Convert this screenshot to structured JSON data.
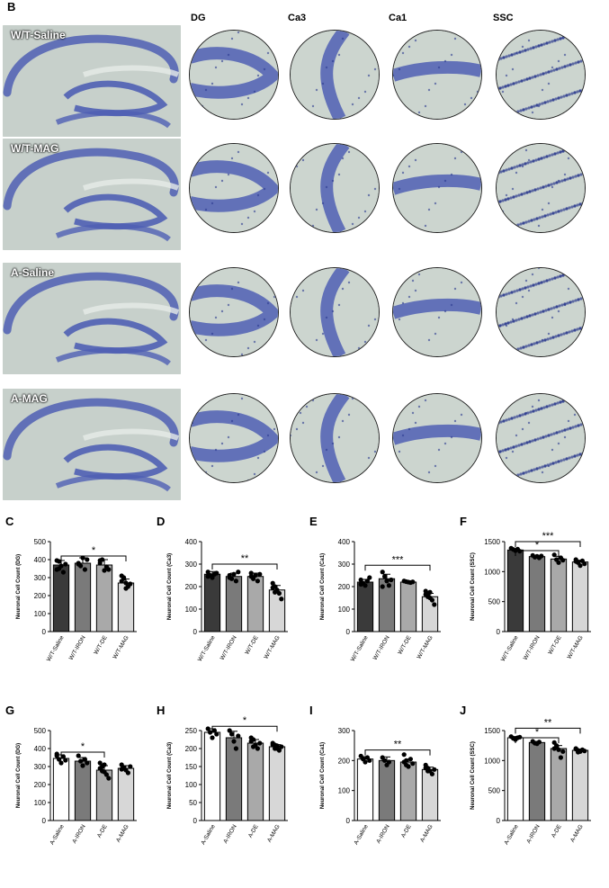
{
  "panel_b": {
    "letter": "B",
    "columns": [
      "DG",
      "Ca3",
      "Ca1",
      "SSC"
    ],
    "rows": [
      "W/T-Saline",
      "W/T-MAG",
      "A-Saline",
      "A-MAG"
    ]
  },
  "colors": {
    "stain": "#4f5fb4",
    "stain_dark": "#2c3a8f",
    "tissue": "#cbd3ce"
  },
  "chart_data": [
    {
      "letter": "C",
      "type": "bar",
      "ylabel": "Neuronal Cell Count (DG)",
      "ylim": [
        0,
        500
      ],
      "yticks": [
        0,
        100,
        200,
        300,
        400,
        500
      ],
      "categories": [
        "W/T-Saline",
        "W/T-IRON",
        "W/T-DE",
        "W/T-MAG"
      ],
      "values": [
        370,
        380,
        370,
        270
      ],
      "errors": [
        25,
        30,
        30,
        22
      ],
      "colors": [
        "#3a3a3a",
        "#7a7a7a",
        "#a9a9a9",
        "#d7d7d7"
      ],
      "sig": [
        {
          "from": 0,
          "to": 3,
          "label": "*",
          "y": 420
        }
      ],
      "points": [
        [
          395,
          350,
          365,
          330,
          375,
          345,
          390
        ],
        [
          375,
          365,
          410,
          345,
          400,
          380
        ],
        [
          395,
          400,
          340,
          360,
          345,
          380
        ],
        [
          310,
          295,
          270,
          250,
          265,
          280,
          300,
          240
        ]
      ]
    },
    {
      "letter": "D",
      "type": "bar",
      "ylabel": "Neuronal Cell Count (Ca3)",
      "ylim": [
        0,
        400
      ],
      "yticks": [
        0,
        100,
        200,
        300,
        400
      ],
      "categories": [
        "W/T-Saline",
        "W/T-IRON",
        "W/T-DE",
        "W/T-MAG"
      ],
      "values": [
        255,
        245,
        245,
        185
      ],
      "errors": [
        12,
        15,
        15,
        20
      ],
      "colors": [
        "#3a3a3a",
        "#7a7a7a",
        "#a9a9a9",
        "#d7d7d7"
      ],
      "sig": [
        {
          "from": 0,
          "to": 3,
          "label": "**",
          "y": 300
        }
      ],
      "points": [
        [
          265,
          250,
          240,
          255,
          260,
          245
        ],
        [
          250,
          235,
          255,
          225,
          265,
          240
        ],
        [
          260,
          235,
          250,
          225,
          255,
          245
        ],
        [
          215,
          200,
          180,
          170,
          145,
          195,
          175,
          185
        ]
      ]
    },
    {
      "letter": "E",
      "type": "bar",
      "ylabel": "Neuronal Cell Count (Ca1)",
      "ylim": [
        0,
        400
      ],
      "yticks": [
        0,
        100,
        200,
        300,
        400
      ],
      "categories": [
        "W/T-Saline",
        "W/T-IRON",
        "W/T-DE",
        "W/T-MAG"
      ],
      "values": [
        220,
        235,
        220,
        155
      ],
      "errors": [
        12,
        20,
        4,
        15
      ],
      "colors": [
        "#3a3a3a",
        "#7a7a7a",
        "#a9a9a9",
        "#d7d7d7"
      ],
      "sig": [
        {
          "from": 0,
          "to": 3,
          "label": "***",
          "y": 295
        }
      ],
      "points": [
        [
          230,
          215,
          205,
          225,
          240,
          210
        ],
        [
          265,
          245,
          225,
          205,
          230,
          200
        ],
        [
          225,
          222,
          220,
          218,
          221
        ],
        [
          180,
          170,
          150,
          140,
          120,
          165,
          155,
          175
        ]
      ]
    },
    {
      "letter": "F",
      "type": "bar",
      "ylabel": "Neuronal Cell Count (SSC)",
      "ylim": [
        0,
        1500
      ],
      "yticks": [
        0,
        500,
        1000,
        1500
      ],
      "categories": [
        "W/T-Saline",
        "W/T-IRON",
        "W/T-DE",
        "W/T-MAG"
      ],
      "values": [
        1360,
        1250,
        1210,
        1160
      ],
      "errors": [
        20,
        20,
        45,
        30
      ],
      "colors": [
        "#3a3a3a",
        "#7a7a7a",
        "#a9a9a9",
        "#d7d7d7"
      ],
      "sig": [
        {
          "from": 0,
          "to": 2,
          "label": "*",
          "y": 1350,
          "level": 1
        },
        {
          "from": 0,
          "to": 3,
          "label": "***",
          "y": 1500,
          "level": 2
        }
      ],
      "points": [
        [
          1390,
          1370,
          1350,
          1375,
          1340
        ],
        [
          1270,
          1240,
          1255,
          1230,
          1260
        ],
        [
          1280,
          1200,
          1150,
          1230,
          1190
        ],
        [
          1200,
          1150,
          1100,
          1180,
          1130,
          1170,
          1160
        ]
      ]
    },
    {
      "letter": "G",
      "type": "bar",
      "ylabel": "Neuronal Cell Count (DG)",
      "ylim": [
        0,
        500
      ],
      "yticks": [
        0,
        100,
        200,
        300,
        400,
        500
      ],
      "categories": [
        "A-Saline",
        "A-IRON",
        "A-DE",
        "A-MAG"
      ],
      "values": [
        345,
        330,
        280,
        290
      ],
      "errors": [
        20,
        20,
        25,
        15
      ],
      "colors": [
        "#ffffff",
        "#7a7a7a",
        "#a9a9a9",
        "#d7d7d7"
      ],
      "sig": [
        {
          "from": 0,
          "to": 2,
          "label": "*",
          "y": 380
        }
      ],
      "points": [
        [
          370,
          340,
          320,
          355,
          335,
          360
        ],
        [
          360,
          330,
          305,
          340,
          320
        ],
        [
          320,
          300,
          270,
          255,
          235,
          290,
          275,
          310
        ],
        [
          310,
          295,
          280,
          265,
          300,
          285,
          290
        ]
      ]
    },
    {
      "letter": "H",
      "type": "bar",
      "ylabel": "Neuronal Cell Count (Ca3)",
      "ylim": [
        0,
        250
      ],
      "yticks": [
        0,
        50,
        100,
        150,
        200,
        250
      ],
      "categories": [
        "A-Saline",
        "A-IRON",
        "A-DE",
        "A-MAG"
      ],
      "values": [
        245,
        230,
        215,
        205
      ],
      "errors": [
        10,
        18,
        10,
        6
      ],
      "colors": [
        "#ffffff",
        "#7a7a7a",
        "#a9a9a9",
        "#d7d7d7"
      ],
      "sig": [
        {
          "from": 0,
          "to": 3,
          "label": "*",
          "y": 262
        }
      ],
      "points": [
        [
          255,
          245,
          230,
          250,
          240
        ],
        [
          250,
          240,
          220,
          200,
          235
        ],
        [
          230,
          225,
          210,
          200,
          215,
          220,
          205
        ],
        [
          215,
          210,
          200,
          195,
          205,
          210,
          200,
          208
        ]
      ]
    },
    {
      "letter": "I",
      "type": "bar",
      "ylabel": "Neuronal Cell Count (Ca1)",
      "ylim": [
        0,
        300
      ],
      "yticks": [
        0,
        100,
        200,
        300
      ],
      "categories": [
        "A-Saline",
        "A-IRON",
        "A-DE",
        "A-MAG"
      ],
      "values": [
        205,
        200,
        195,
        170
      ],
      "errors": [
        8,
        12,
        10,
        8
      ],
      "colors": [
        "#ffffff",
        "#7a7a7a",
        "#a9a9a9",
        "#d7d7d7"
      ],
      "sig": [
        {
          "from": 0,
          "to": 3,
          "label": "**",
          "y": 235
        }
      ],
      "points": [
        [
          215,
          205,
          195,
          210,
          200
        ],
        [
          210,
          200,
          185,
          195
        ],
        [
          220,
          200,
          180,
          205,
          190,
          195,
          185
        ],
        [
          185,
          175,
          165,
          155,
          170,
          175,
          165
        ]
      ]
    },
    {
      "letter": "J",
      "type": "bar",
      "ylabel": "Neuronal Cell Count (SSC)",
      "ylim": [
        0,
        1500
      ],
      "yticks": [
        0,
        500,
        1000,
        1500
      ],
      "categories": [
        "A-Saline",
        "A-IRON",
        "A-DE",
        "A-MAG"
      ],
      "values": [
        1380,
        1300,
        1200,
        1170
      ],
      "errors": [
        20,
        20,
        50,
        20
      ],
      "colors": [
        "#ffffff",
        "#7a7a7a",
        "#a9a9a9",
        "#d7d7d7"
      ],
      "sig": [
        {
          "from": 0,
          "to": 2,
          "label": "*",
          "y": 1380,
          "level": 1
        },
        {
          "from": 0,
          "to": 3,
          "label": "**",
          "y": 1540,
          "level": 2
        }
      ],
      "points": [
        [
          1400,
          1370,
          1350,
          1380,
          1390
        ],
        [
          1320,
          1290,
          1280,
          1310
        ],
        [
          1300,
          1250,
          1180,
          1050,
          1150,
          1200,
          1220
        ],
        [
          1200,
          1170,
          1150,
          1180,
          1160,
          1190,
          1140
        ]
      ]
    }
  ]
}
